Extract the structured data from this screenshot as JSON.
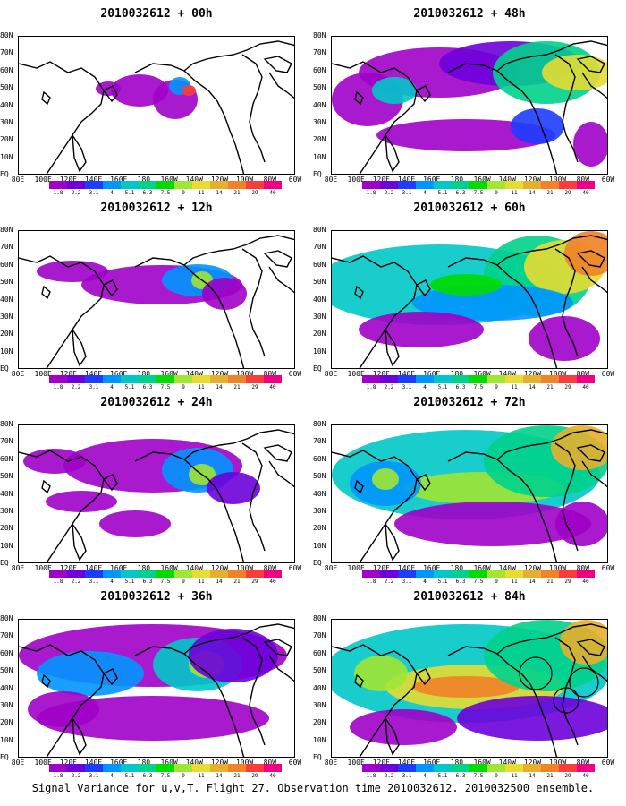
{
  "caption": "Signal Variance for u,v,T. Flight 27. Observation time 2010032612. 2010032500 ensemble.",
  "x_tick_labels": [
    "80E",
    "100E",
    "120E",
    "140E",
    "160E",
    "180",
    "160W",
    "140W",
    "120W",
    "100W",
    "80W",
    "60W"
  ],
  "y_tick_labels": [
    "EQ",
    "10N",
    "20N",
    "30N",
    "40N",
    "50N",
    "60N",
    "70N",
    "80N"
  ],
  "colorbar_labels": [
    "1.8",
    "2.2",
    "3.1",
    "4",
    "5.1",
    "6.3",
    "7.5",
    "9",
    "11",
    "14",
    "21",
    "29",
    "40"
  ],
  "colorbar_colors": [
    "#a000c8",
    "#6e00dc",
    "#1e3cff",
    "#0096ff",
    "#00c8c8",
    "#00d28c",
    "#00dc00",
    "#a0e632",
    "#e6dc32",
    "#e6af2d",
    "#f08228",
    "#fa3c3c",
    "#f00082"
  ],
  "chart_data": [
    {
      "type": "heatmap",
      "title": "2010032612 + 00h",
      "xlim": [
        "80E",
        "60W"
      ],
      "ylim": [
        "EQ",
        "80N"
      ],
      "legend": "bottom"
    },
    {
      "type": "heatmap",
      "title": "2010032612 + 48h",
      "xlim": [
        "80E",
        "60W"
      ],
      "ylim": [
        "EQ",
        "80N"
      ],
      "legend": "bottom"
    },
    {
      "type": "heatmap",
      "title": "2010032612 + 12h",
      "xlim": [
        "80E",
        "60W"
      ],
      "ylim": [
        "EQ",
        "80N"
      ],
      "legend": "bottom"
    },
    {
      "type": "heatmap",
      "title": "2010032612 + 60h",
      "xlim": [
        "80E",
        "60W"
      ],
      "ylim": [
        "EQ",
        "80N"
      ],
      "legend": "bottom"
    },
    {
      "type": "heatmap",
      "title": "2010032612 + 24h",
      "xlim": [
        "80E",
        "60W"
      ],
      "ylim": [
        "EQ",
        "80N"
      ],
      "legend": "bottom"
    },
    {
      "type": "heatmap",
      "title": "2010032612 + 72h",
      "xlim": [
        "80E",
        "60W"
      ],
      "ylim": [
        "EQ",
        "80N"
      ],
      "legend": "bottom"
    },
    {
      "type": "heatmap",
      "title": "2010032612 + 36h",
      "xlim": [
        "80E",
        "60W"
      ],
      "ylim": [
        "EQ",
        "80N"
      ],
      "legend": "bottom"
    },
    {
      "type": "heatmap",
      "title": "2010032612 + 84h",
      "xlim": [
        "80E",
        "60W"
      ],
      "ylim": [
        "EQ",
        "80N"
      ],
      "legend": "bottom"
    }
  ]
}
